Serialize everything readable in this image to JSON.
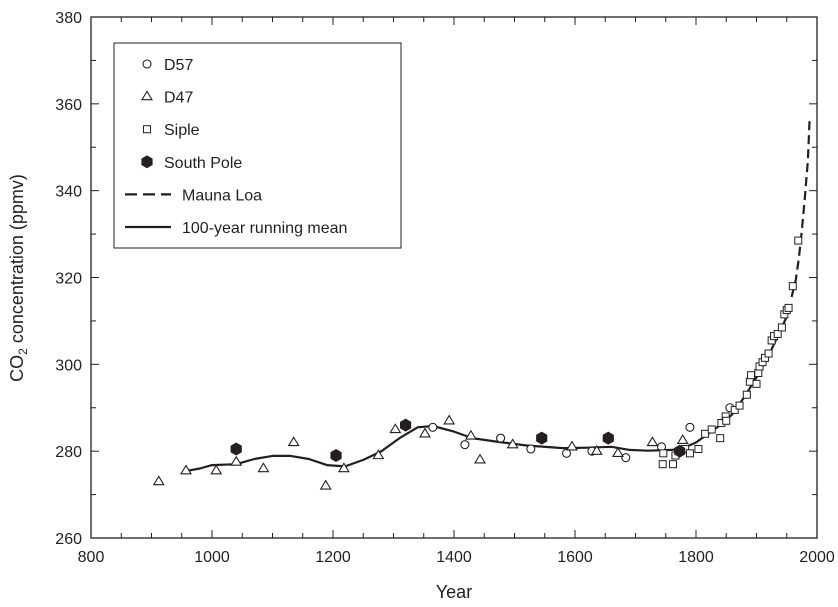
{
  "chart_data": {
    "type": "scatter",
    "xlabel": "Year",
    "ylabel": {
      "pre": "CO",
      "sub": "2",
      "post": " concentration (ppmv)"
    },
    "xlim": [
      800,
      2000
    ],
    "ylim": [
      260,
      380
    ],
    "xticks": [
      800,
      1000,
      1200,
      1400,
      1600,
      1800,
      2000
    ],
    "yticks": [
      260,
      280,
      300,
      320,
      340,
      360,
      380
    ],
    "legend_position": "top-left",
    "legend": [
      {
        "label": "D57",
        "marker": "circle"
      },
      {
        "label": "D47",
        "marker": "triangle"
      },
      {
        "label": "Siple",
        "marker": "square"
      },
      {
        "label": "South Pole",
        "marker": "hexagon-filled"
      },
      {
        "label": "Mauna Loa",
        "marker": "dashed-line"
      },
      {
        "label": "100-year running mean",
        "marker": "solid-line"
      }
    ],
    "series": [
      {
        "name": "D57",
        "marker": "circle",
        "points": [
          [
            1365,
            285.5
          ],
          [
            1418,
            281.5
          ],
          [
            1477,
            283
          ],
          [
            1527,
            280.5
          ],
          [
            1586,
            279.5
          ],
          [
            1628,
            280
          ],
          [
            1684,
            278.5
          ],
          [
            1743,
            281
          ],
          [
            1790,
            285.5
          ],
          [
            1856,
            290
          ]
        ]
      },
      {
        "name": "D47",
        "marker": "triangle",
        "points": [
          [
            912,
            273
          ],
          [
            957,
            275.5
          ],
          [
            1007,
            275.5
          ],
          [
            1040,
            277.5
          ],
          [
            1085,
            276
          ],
          [
            1135,
            282
          ],
          [
            1188,
            272
          ],
          [
            1218,
            276
          ],
          [
            1275,
            279
          ],
          [
            1303,
            285
          ],
          [
            1352,
            284
          ],
          [
            1392,
            287
          ],
          [
            1428,
            283.5
          ],
          [
            1443,
            278
          ],
          [
            1497,
            281.5
          ],
          [
            1595,
            281
          ],
          [
            1636,
            280
          ],
          [
            1671,
            279.5
          ],
          [
            1728,
            282
          ],
          [
            1778,
            282.5
          ]
        ]
      },
      {
        "name": "Siple",
        "marker": "square",
        "points": [
          [
            1745,
            277
          ],
          [
            1746,
            279.5
          ],
          [
            1762,
            277
          ],
          [
            1766,
            279
          ],
          [
            1782,
            280.5
          ],
          [
            1790,
            279.5
          ],
          [
            1804,
            280.5
          ],
          [
            1815,
            284
          ],
          [
            1826,
            285
          ],
          [
            1840,
            283
          ],
          [
            1842,
            286.5
          ],
          [
            1849,
            288
          ],
          [
            1850,
            287
          ],
          [
            1864,
            289.5
          ],
          [
            1872,
            290.5
          ],
          [
            1884,
            293
          ],
          [
            1889,
            296
          ],
          [
            1891,
            297.5
          ],
          [
            1900,
            295.5
          ],
          [
            1903,
            298
          ],
          [
            1905,
            299.5
          ],
          [
            1910,
            300.5
          ],
          [
            1914,
            301.5
          ],
          [
            1920,
            302.5
          ],
          [
            1925,
            305.5
          ],
          [
            1929,
            306.5
          ],
          [
            1935,
            307
          ],
          [
            1942,
            308.5
          ],
          [
            1946,
            311.5
          ],
          [
            1950,
            312.5
          ],
          [
            1953,
            313
          ],
          [
            1960,
            318
          ],
          [
            1969,
            328.5
          ]
        ]
      },
      {
        "name": "South Pole",
        "marker": "hexagon-filled",
        "points": [
          [
            1040,
            280.5
          ],
          [
            1205,
            279
          ],
          [
            1320,
            286
          ],
          [
            1545,
            283
          ],
          [
            1655,
            283
          ],
          [
            1773,
            280
          ]
        ]
      },
      {
        "name": "Mauna Loa",
        "marker": "dashed-line",
        "points": [
          [
            1958,
            315.5
          ],
          [
            1965,
            319.5
          ],
          [
            1970,
            324.5
          ],
          [
            1975,
            331
          ],
          [
            1980,
            338.5
          ],
          [
            1985,
            347
          ],
          [
            1988,
            357
          ]
        ]
      },
      {
        "name": "100-year running mean",
        "marker": "solid-line",
        "points": [
          [
            960,
            275.5
          ],
          [
            980,
            276
          ],
          [
            1000,
            276.8
          ],
          [
            1040,
            277
          ],
          [
            1070,
            278.2
          ],
          [
            1100,
            278.9
          ],
          [
            1130,
            278.9
          ],
          [
            1160,
            278.2
          ],
          [
            1190,
            276.8
          ],
          [
            1220,
            276.5
          ],
          [
            1250,
            278
          ],
          [
            1280,
            280
          ],
          [
            1310,
            283
          ],
          [
            1340,
            285.5
          ],
          [
            1365,
            285.8
          ],
          [
            1400,
            284.5
          ],
          [
            1430,
            283
          ],
          [
            1470,
            282.2
          ],
          [
            1520,
            281.3
          ],
          [
            1580,
            280.7
          ],
          [
            1620,
            280.8
          ],
          [
            1660,
            281
          ],
          [
            1690,
            280.3
          ],
          [
            1720,
            280.1
          ],
          [
            1760,
            280.3
          ],
          [
            1780,
            280.8
          ],
          [
            1800,
            282
          ],
          [
            1820,
            284
          ],
          [
            1840,
            286
          ],
          [
            1860,
            288.5
          ],
          [
            1880,
            292.5
          ],
          [
            1900,
            297
          ],
          [
            1920,
            302
          ],
          [
            1935,
            306.5
          ],
          [
            1950,
            311
          ]
        ]
      }
    ]
  }
}
